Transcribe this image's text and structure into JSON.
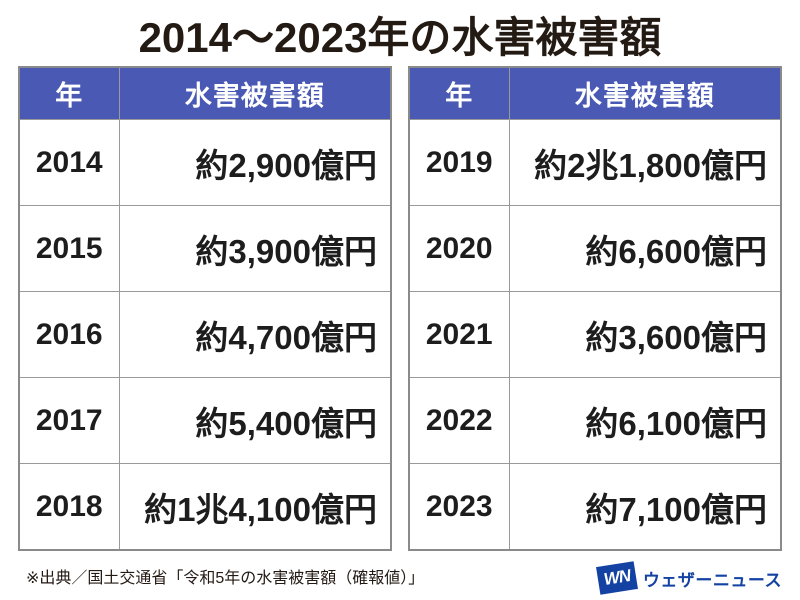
{
  "title": "2014〜2023年の水害被害額",
  "colors": {
    "header_bg": "#4a5ab4",
    "header_text": "#ffffff",
    "border_outer": "#8a8a8a",
    "border_inner": "#9a9a9a",
    "body_text": "#1d1d1d",
    "logo_blue": "#1342a2"
  },
  "tables": [
    {
      "headers": {
        "year": "年",
        "amount": "水害被害額"
      },
      "rows": [
        {
          "year": "2014",
          "amount": "約2,900億円"
        },
        {
          "year": "2015",
          "amount": "約3,900億円"
        },
        {
          "year": "2016",
          "amount": "約4,700億円"
        },
        {
          "year": "2017",
          "amount": "約5,400億円"
        },
        {
          "year": "2018",
          "amount": "約1兆4,100億円"
        }
      ]
    },
    {
      "headers": {
        "year": "年",
        "amount": "水害被害額"
      },
      "rows": [
        {
          "year": "2019",
          "amount": "約2兆1,800億円"
        },
        {
          "year": "2020",
          "amount": "約6,600億円"
        },
        {
          "year": "2021",
          "amount": "約3,600億円"
        },
        {
          "year": "2022",
          "amount": "約6,100億円"
        },
        {
          "year": "2023",
          "amount": "約7,100億円"
        }
      ]
    }
  ],
  "footer": {
    "source": "※出典／国土交通省「令和5年の水害被害額（確報値）」",
    "logo_mark": "WN",
    "logo_text": "ウェザーニュース"
  },
  "chart_data": {
    "type": "table",
    "title": "2014〜2023年の水害被害額",
    "columns": [
      "年",
      "水害被害額"
    ],
    "years": [
      2014,
      2015,
      2016,
      2017,
      2018,
      2019,
      2020,
      2021,
      2022,
      2023
    ],
    "values_oku_yen": [
      2900,
      3900,
      4700,
      5400,
      14100,
      21800,
      6600,
      3600,
      6100,
      7100
    ],
    "value_labels": [
      "約2,900億円",
      "約3,900億円",
      "約4,700億円",
      "約5,400億円",
      "約1兆4,100億円",
      "約2兆1,800億円",
      "約6,600億円",
      "約3,600億円",
      "約6,100億円",
      "約7,100億円"
    ],
    "source": "国土交通省「令和5年の水害被害額（確報値）」"
  }
}
